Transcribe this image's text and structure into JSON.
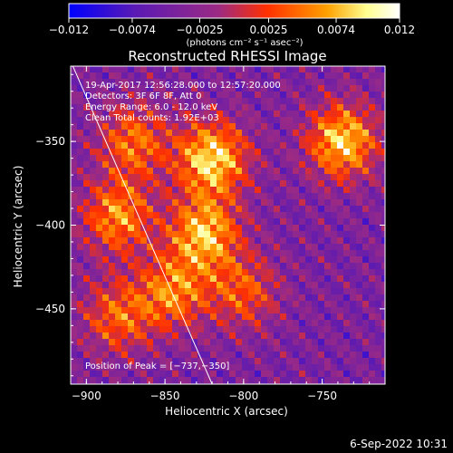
{
  "chart_data": {
    "type": "heatmap",
    "title": "Reconstructed RHESSI Image",
    "xlabel": "Heliocentric X (arcsec)",
    "ylabel": "Heliocentric Y (arcsec)",
    "xlim": [
      -910,
      -710
    ],
    "ylim": [
      -495,
      -305
    ],
    "x_ticks": [
      -900,
      -850,
      -800,
      -750
    ],
    "x_tick_labels": [
      "−900",
      "−850",
      "−800",
      "−750"
    ],
    "y_ticks": [
      -450,
      -400,
      -350
    ],
    "y_tick_labels": [
      "−450",
      "−400",
      "−350"
    ],
    "colorbar": {
      "range": [
        -0.012,
        0.012
      ],
      "ticks": [
        -0.012,
        -0.0074,
        -0.0025,
        0.0025,
        0.0074,
        0.012
      ],
      "tick_labels": [
        "−0.012",
        "−0.0074",
        "−0.0025",
        "0.0025",
        "0.0074",
        "0.012"
      ],
      "units_label": "(photons cm⁻² s⁻¹ asec⁻²)",
      "colors": [
        "#0000ff",
        "#5a1ab4",
        "#9b2a85",
        "#ff3000",
        "#ffa000",
        "#ffff90",
        "#ffffff"
      ]
    },
    "annotations": [
      "19-Apr-2017 12:56:28.000 to 12:57:20.000",
      "Detectors: 3F 6F 8F, Att 0",
      "Energy Range: 6.0 - 12.0 keV",
      "Clean    Total counts: 1.92E+03"
    ],
    "peak_label": "Position of Peak = [−737,−350]",
    "peak": [
      -737,
      -350
    ],
    "limb_line": [
      [
        -910,
        -302
      ],
      [
        -820,
        -495
      ]
    ],
    "bright_sources": [
      {
        "x": -820,
        "y": -360,
        "strength": 1.0
      },
      {
        "x": -825,
        "y": -405,
        "strength": 0.9
      },
      {
        "x": -737,
        "y": -350,
        "strength": 0.95
      },
      {
        "x": -880,
        "y": -395,
        "strength": 0.75
      },
      {
        "x": -870,
        "y": -350,
        "strength": 0.65
      },
      {
        "x": -880,
        "y": -455,
        "strength": 0.6
      },
      {
        "x": -845,
        "y": -440,
        "strength": 0.7
      },
      {
        "x": -800,
        "y": -440,
        "strength": 0.55
      }
    ]
  },
  "footer": {
    "date": "6-Sep-2022 10:31"
  }
}
